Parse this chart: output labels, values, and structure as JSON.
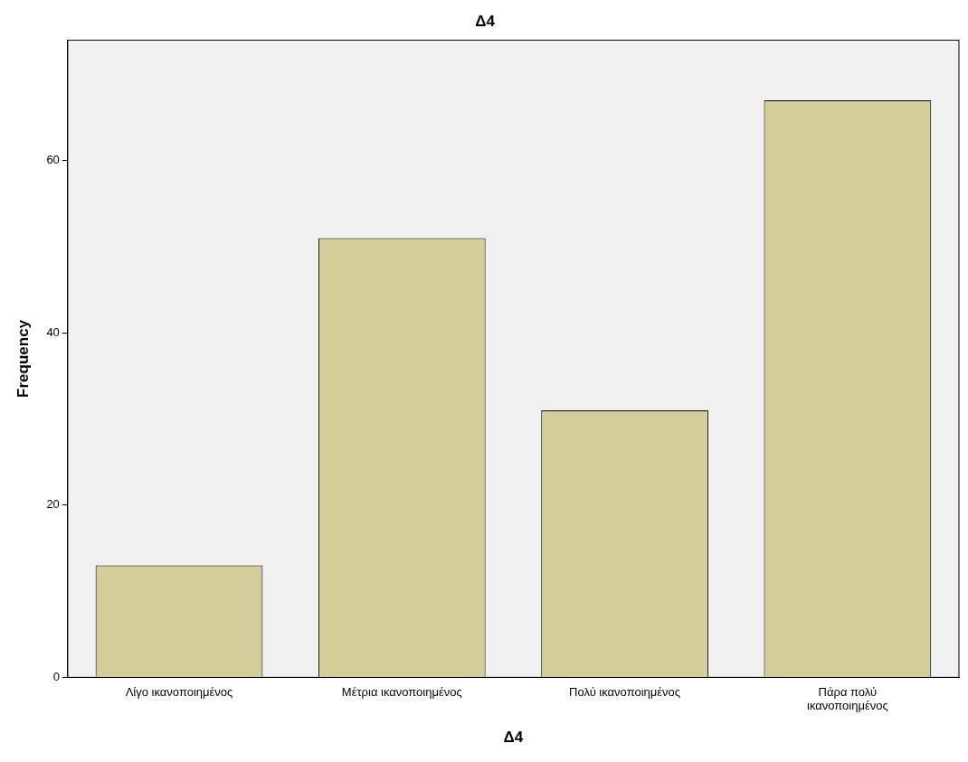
{
  "chart_data": {
    "type": "bar",
    "title": "Δ4",
    "xlabel": "Δ4",
    "ylabel": "Frequency",
    "categories": [
      "Λίγο ικανοποιημένος",
      "Μέτρια ικανοποιημένος",
      "Πολύ ικανοποιημένος",
      "Πάρα πολύ ικανοποιημένος"
    ],
    "values": [
      13,
      51,
      31,
      67
    ],
    "color": "#d3ce97",
    "ylim": [
      0,
      74
    ],
    "yticks": [
      0,
      20,
      40,
      60
    ],
    "grid": false,
    "legend": false
  }
}
